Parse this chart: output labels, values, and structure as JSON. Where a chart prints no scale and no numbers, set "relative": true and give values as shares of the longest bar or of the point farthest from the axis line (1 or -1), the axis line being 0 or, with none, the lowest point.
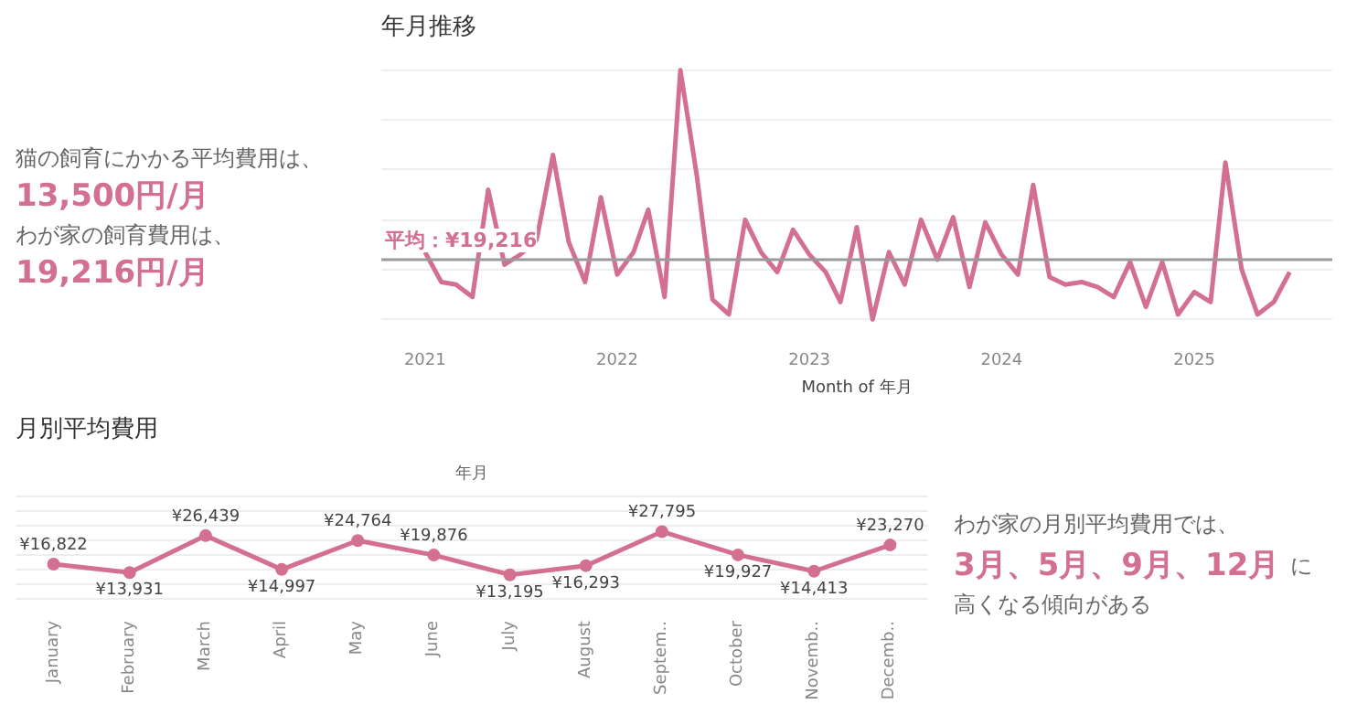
{
  "chart_data": [
    {
      "type": "other",
      "annotations": [
        "猫の飼育にかかる平均費用は、",
        "13,500円/月",
        "わが家の飼育費用は、",
        "19,216円/月"
      ]
    },
    {
      "type": "line",
      "title": "年月推移",
      "xlabel": "Month of 年月",
      "color": "#d4708f",
      "grid": "y",
      "marker": "none",
      "line_style": "solid",
      "relative": true,
      "x": [
        "2021-01",
        "2021-02",
        "2021-03",
        "2021-04",
        "2021-05",
        "2021-06",
        "2021-07",
        "2021-08",
        "2021-09",
        "2021-10",
        "2021-11",
        "2021-12",
        "2022-01",
        "2022-02",
        "2022-03",
        "2022-04",
        "2022-05",
        "2022-06",
        "2022-07",
        "2022-08",
        "2022-09",
        "2022-10",
        "2022-11",
        "2022-12",
        "2023-01",
        "2023-02",
        "2023-03",
        "2023-04",
        "2023-05",
        "2023-06",
        "2023-07",
        "2023-08",
        "2023-09",
        "2023-10",
        "2023-11",
        "2023-12",
        "2024-01",
        "2024-02",
        "2024-03",
        "2024-04",
        "2024-05",
        "2024-06",
        "2024-07",
        "2024-08",
        "2024-09",
        "2024-10",
        "2024-11",
        "2024-12",
        "2025-01",
        "2025-02",
        "2025-03",
        "2025-04",
        "2025-05",
        "2025-06",
        "2025-07"
      ],
      "values": [
        0.27,
        0.15,
        0.14,
        0.09,
        0.52,
        0.22,
        0.26,
        0.32,
        0.66,
        0.31,
        0.15,
        0.49,
        0.18,
        0.27,
        0.44,
        0.09,
        1,
        0.58,
        0.08,
        0.02,
        0.4,
        0.27,
        0.19,
        0.36,
        0.26,
        0.19,
        0.07,
        0.37,
        0,
        0.27,
        0.14,
        0.4,
        0.24,
        0.41,
        0.13,
        0.39,
        0.26,
        0.18,
        0.54,
        0.17,
        0.14,
        0.15,
        0.13,
        0.09,
        0.23,
        0.05,
        0.23,
        0.02,
        0.11,
        0.07,
        0.63,
        0.2,
        0.02,
        0.07,
        0.19
      ],
      "xlim": [
        "2020-10-10",
        "2025-09-20"
      ],
      "xticks": [
        "2021",
        "2022",
        "2023",
        "2024",
        "2025"
      ],
      "ref_lines": [
        {
          "axis": "y",
          "value": 0.24,
          "label": "平均：¥19,216",
          "color": "#999999"
        }
      ]
    },
    {
      "type": "line",
      "title": "月別平均費用",
      "xlabel": "年月",
      "color": "#d4708f",
      "grid": "y",
      "marker": "circle",
      "line_style": "solid",
      "data_labels": true,
      "categories": [
        "January",
        "February",
        "March",
        "April",
        "May",
        "June",
        "July",
        "August",
        "Septem..",
        "October",
        "Novemb..",
        "Decemb.."
      ],
      "values": [
        16822,
        13931,
        26439,
        14997,
        24764,
        19876,
        13195,
        16293,
        27795,
        19927,
        14413,
        23270
      ],
      "value_labels": [
        "¥16,822",
        "¥13,931",
        "¥26,439",
        "¥14,997",
        "¥24,764",
        "¥19,876",
        "¥13,195",
        "¥16,293",
        "¥27,795",
        "¥19,927",
        "¥14,413",
        "¥23,270"
      ],
      "tick_labels": "x"
    },
    {
      "type": "other",
      "annotations": [
        "わが家の月別平均費用では、",
        "3月、5月、9月、12月",
        "に",
        "高くなる傾向がある"
      ]
    }
  ]
}
